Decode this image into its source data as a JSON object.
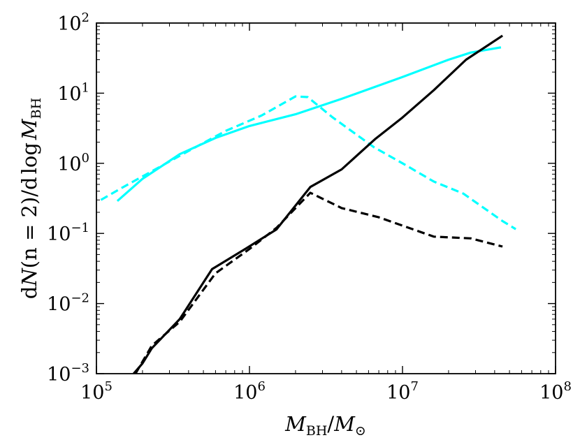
{
  "chart_data": {
    "type": "line",
    "title": "",
    "x_scale": "log",
    "y_scale": "log",
    "xlim": [
      100000,
      100000000
    ],
    "ylim": [
      0.001,
      100
    ],
    "grid": false,
    "xlabel": {
      "main": "M",
      "sub": "BH",
      "sep": "/",
      "main2": "M",
      "sub2": "⊙"
    },
    "ylabel": {
      "d1": "d",
      "n_sym": "N",
      "args": "(n = 2)",
      "slash": "/",
      "d2": "d",
      "log": "log",
      "m_sym": "M",
      "sub": "BH"
    },
    "x_ticks": [
      {
        "value": 100000,
        "base": "10",
        "exp": "5"
      },
      {
        "value": 1000000,
        "base": "10",
        "exp": "6"
      },
      {
        "value": 10000000,
        "base": "10",
        "exp": "7"
      },
      {
        "value": 100000000,
        "base": "10",
        "exp": "8"
      }
    ],
    "y_ticks": [
      {
        "value": 0.001,
        "base": "10",
        "exp": "−3"
      },
      {
        "value": 0.01,
        "base": "10",
        "exp": "−2"
      },
      {
        "value": 0.1,
        "base": "10",
        "exp": "−1"
      },
      {
        "value": 1,
        "base": "10",
        "exp": "0"
      },
      {
        "value": 10,
        "base": "10",
        "exp": "1"
      },
      {
        "value": 100,
        "base": "10",
        "exp": "2"
      }
    ],
    "series": [
      {
        "name": "cyan-solid",
        "color": "#00ffff",
        "dash": "solid",
        "points": [
          [
            137000,
            0.29
          ],
          [
            200000,
            0.6
          ],
          [
            350000,
            1.35
          ],
          [
            600000,
            2.3
          ],
          [
            1000000,
            3.4
          ],
          [
            2000000,
            5.0
          ],
          [
            4000000,
            8.3
          ],
          [
            10000000,
            17
          ],
          [
            20000000,
            30
          ],
          [
            28000000,
            38
          ],
          [
            44000000,
            45
          ]
        ]
      },
      {
        "name": "cyan-dashed",
        "color": "#00ffff",
        "dash": "dashed",
        "points": [
          [
            107000,
            0.3
          ],
          [
            150000,
            0.46
          ],
          [
            250000,
            0.85
          ],
          [
            400000,
            1.5
          ],
          [
            700000,
            2.9
          ],
          [
            1200000,
            4.8
          ],
          [
            2000000,
            9.0
          ],
          [
            2400000,
            8.8
          ],
          [
            3500000,
            4.5
          ],
          [
            6500000,
            1.7
          ],
          [
            10000000,
            1.0
          ],
          [
            16000000,
            0.55
          ],
          [
            25000000,
            0.37
          ],
          [
            45000000,
            0.15
          ],
          [
            55000000,
            0.115
          ]
        ]
      },
      {
        "name": "black-solid",
        "color": "#000000",
        "dash": "solid",
        "points": [
          [
            175000,
            0.001
          ],
          [
            200000,
            0.0014
          ],
          [
            230000,
            0.0023
          ],
          [
            350000,
            0.006
          ],
          [
            570000,
            0.031
          ],
          [
            950000,
            0.061
          ],
          [
            1500000,
            0.114
          ],
          [
            2500000,
            0.46
          ],
          [
            4000000,
            0.82
          ],
          [
            6600000,
            2.2
          ],
          [
            10000000,
            4.5
          ],
          [
            16000000,
            11
          ],
          [
            26000000,
            30
          ],
          [
            45000000,
            66
          ]
        ]
      },
      {
        "name": "black-dashed",
        "color": "#000000",
        "dash": "dashed",
        "points": [
          [
            180000,
            0.001
          ],
          [
            230000,
            0.0025
          ],
          [
            350000,
            0.0055
          ],
          [
            600000,
            0.027
          ],
          [
            1000000,
            0.06
          ],
          [
            1500000,
            0.12
          ],
          [
            2500000,
            0.38
          ],
          [
            4000000,
            0.23
          ],
          [
            7000000,
            0.17
          ],
          [
            16000000,
            0.09
          ],
          [
            28000000,
            0.085
          ],
          [
            45000000,
            0.065
          ]
        ]
      }
    ]
  }
}
